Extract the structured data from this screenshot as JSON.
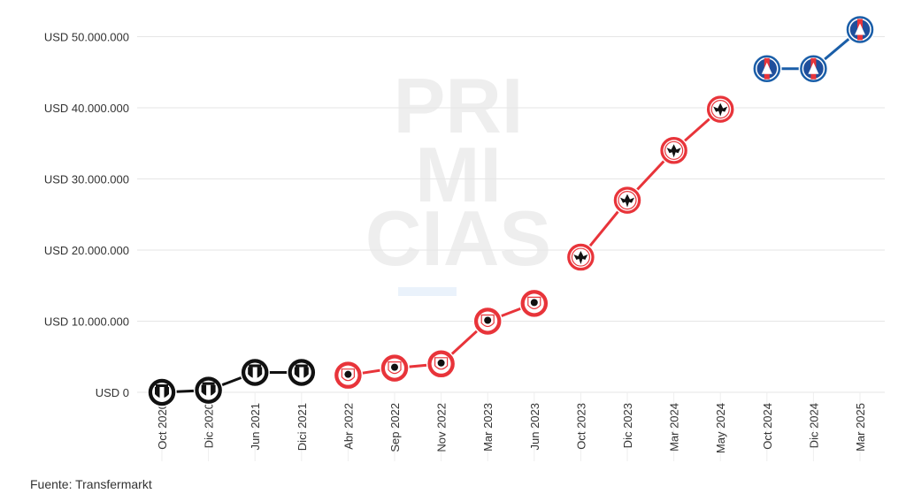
{
  "watermark": [
    "PRI",
    "MI",
    "CIAS"
  ],
  "source": "Fuente: Transfermarkt",
  "colors": {
    "black_series": "#111111",
    "red_series": "#e8343a",
    "blue_series": "#1a5ea8",
    "grid": "#e6e6e6"
  },
  "chart_data": {
    "type": "line",
    "categories": [
      "Oct 2020",
      "Dic 2020",
      "Jun 2021",
      "Dici 2021",
      "Abr 2022",
      "Sep 2022",
      "Nov 2022",
      "Mar 2023",
      "Jun 2023",
      "Oct 2023",
      "Dic 2023",
      "Mar 2024",
      "May 2024",
      "Oct 2024",
      "Dic 2024",
      "Mar 2025"
    ],
    "ylim": [
      0,
      50000000
    ],
    "yticks": [
      0,
      10000000,
      20000000,
      30000000,
      40000000,
      50000000
    ],
    "ytick_labels": [
      "USD 0",
      "USD 10.000.000",
      "USD 20.000.000",
      "USD 30.000.000",
      "USD 40.000.000",
      "USD 50.000.000"
    ],
    "series": [
      {
        "color": "#111111",
        "icon": "independiente-crest-icon",
        "points": [
          {
            "x": "Oct 2020",
            "y": 0
          },
          {
            "x": "Dic 2020",
            "y": 300000
          },
          {
            "x": "Jun 2021",
            "y": 2800000
          },
          {
            "x": "Dici 2021",
            "y": 2800000
          }
        ]
      },
      {
        "color": "#e8343a",
        "icon": "antwerp-crest-icon",
        "points": [
          {
            "x": "Abr 2022",
            "y": 2400000
          },
          {
            "x": "Sep 2022",
            "y": 3400000
          },
          {
            "x": "Nov 2022",
            "y": 4000000
          },
          {
            "x": "Mar 2023",
            "y": 10000000
          },
          {
            "x": "Jun 2023",
            "y": 12500000
          }
        ]
      },
      {
        "color": "#e8343a",
        "icon": "eintracht-eagle-icon",
        "points": [
          {
            "x": "Oct 2023",
            "y": 19000000
          },
          {
            "x": "Dic 2023",
            "y": 27000000
          },
          {
            "x": "Mar 2024",
            "y": 34000000
          },
          {
            "x": "May 2024",
            "y": 39800000
          }
        ]
      },
      {
        "color": "#1a5ea8",
        "icon": "psg-crest-icon",
        "points": [
          {
            "x": "Oct 2024",
            "y": 45500000
          },
          {
            "x": "Dic 2024",
            "y": 45500000
          },
          {
            "x": "Mar 2025",
            "y": 51000000
          }
        ]
      }
    ],
    "grid": true
  }
}
